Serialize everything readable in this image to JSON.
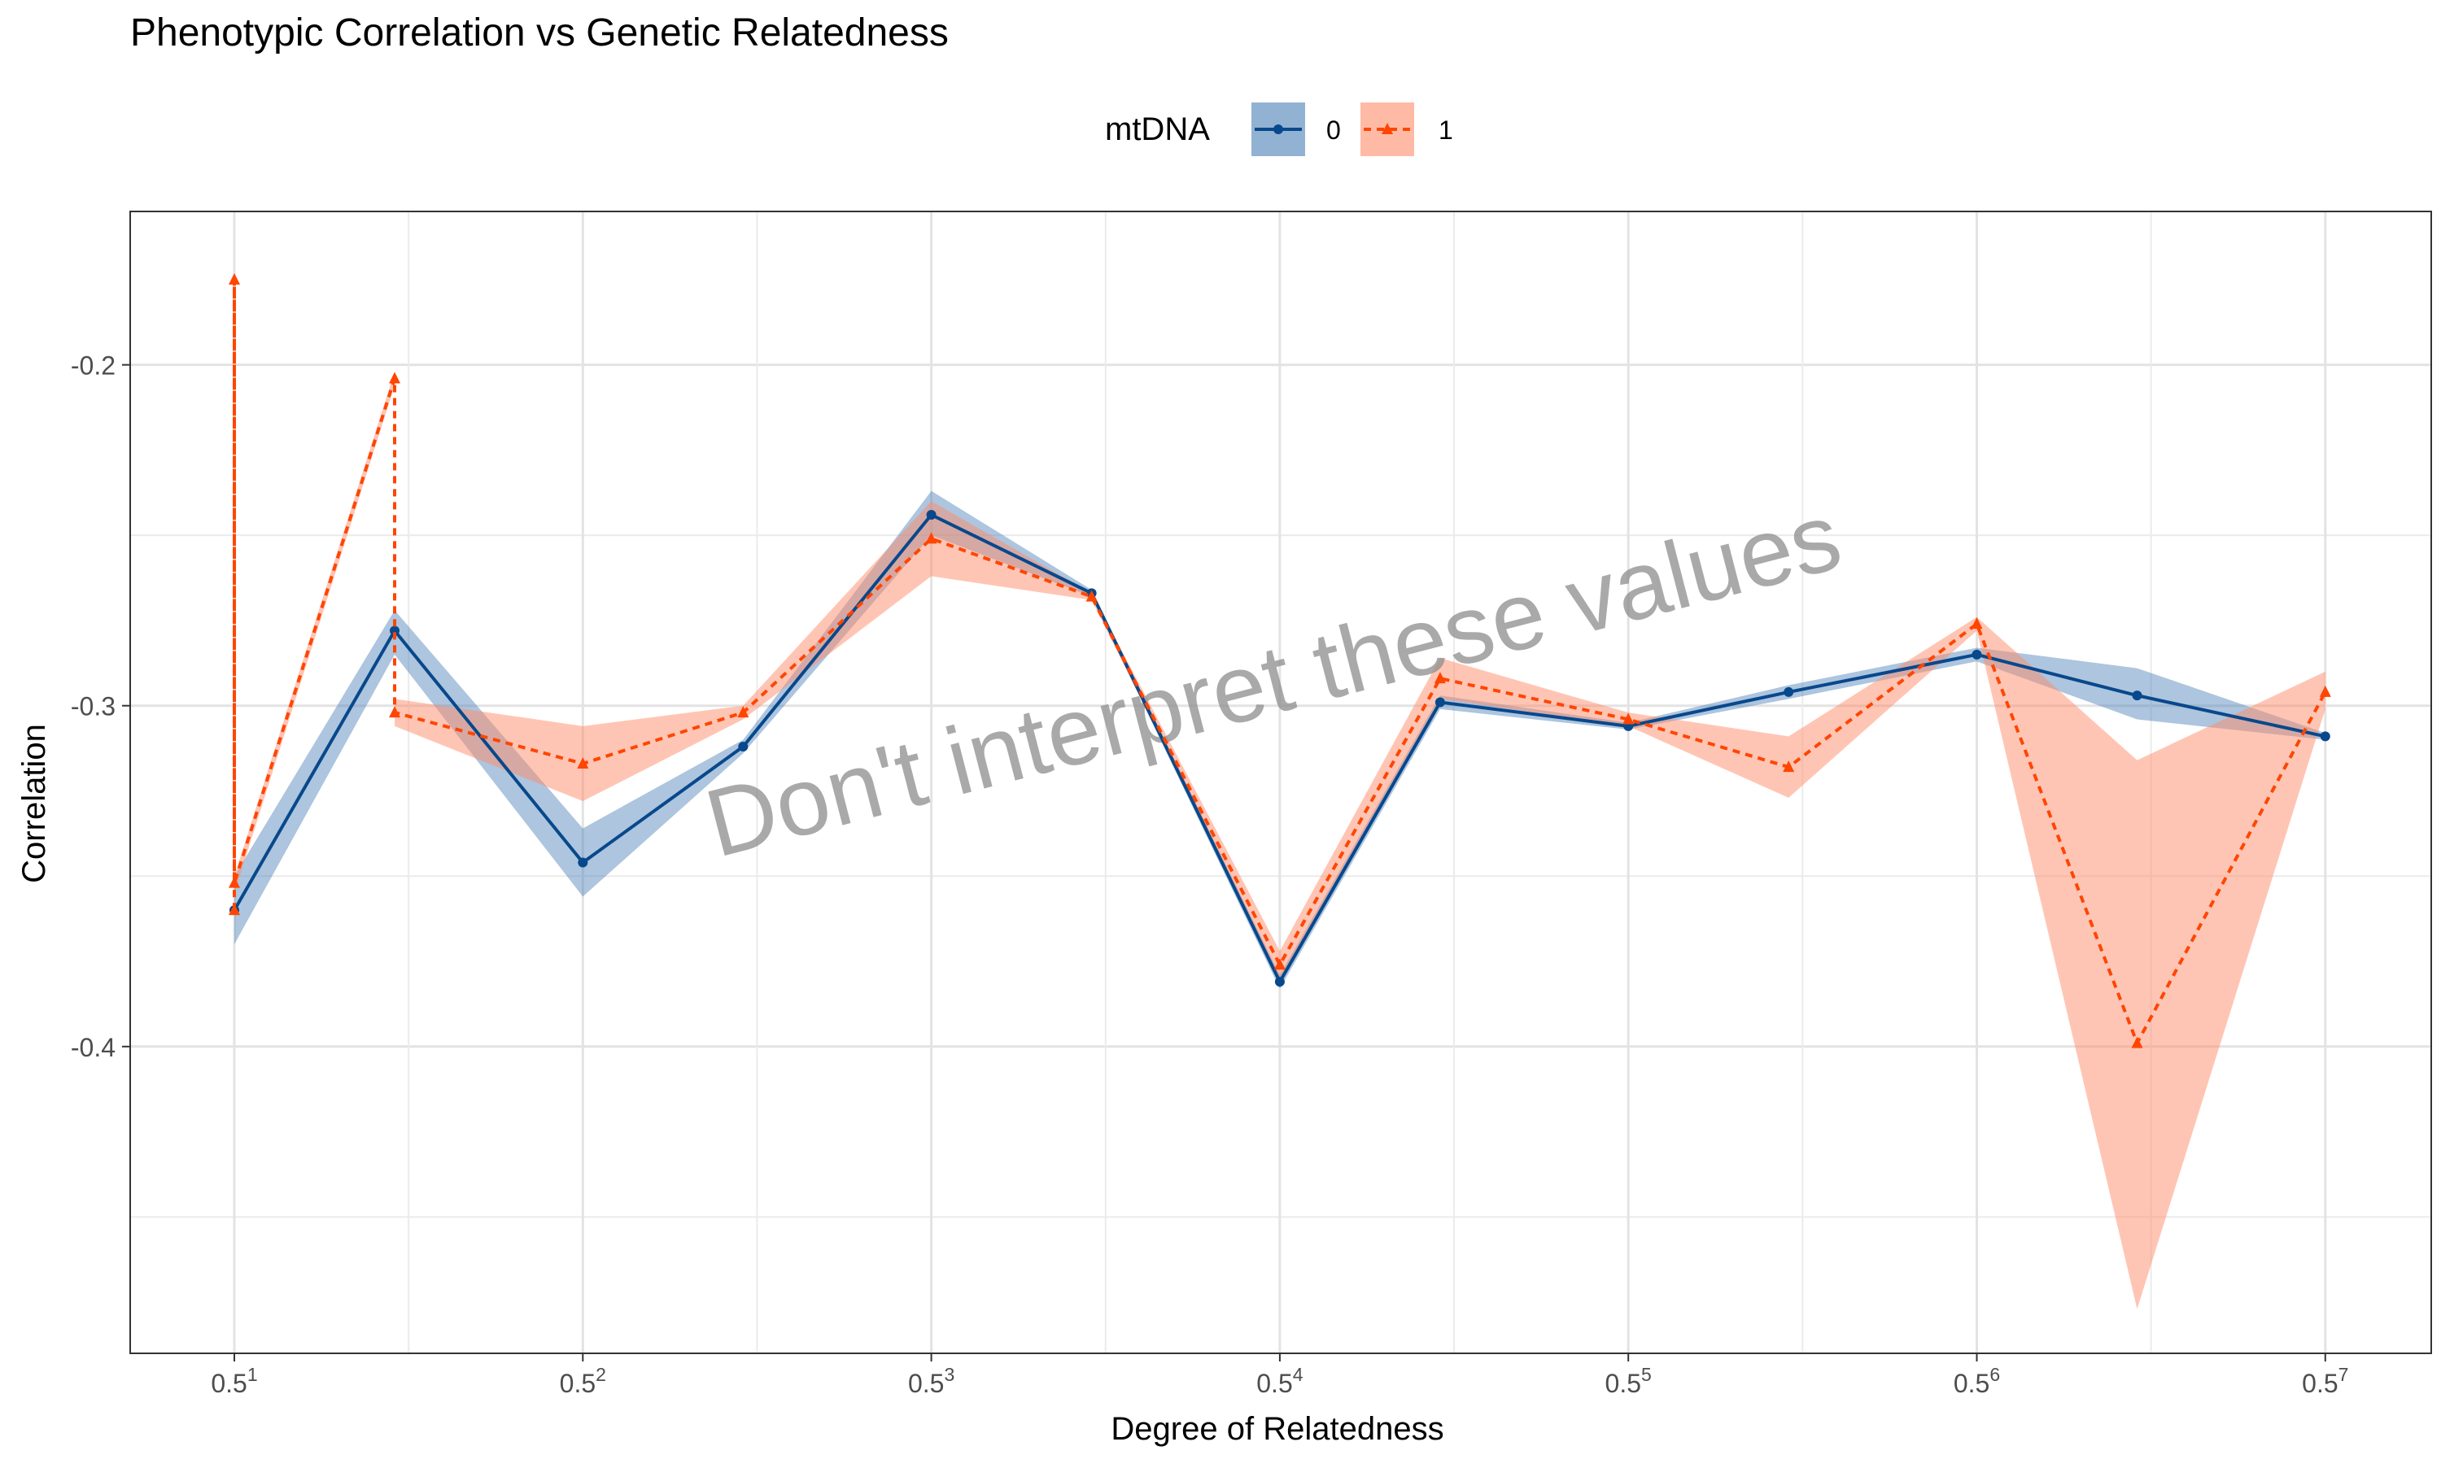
{
  "chart_data": {
    "type": "line",
    "title": "Phenotypic Correlation vs Genetic Relatedness",
    "xlabel": "Degree of Relatedness",
    "ylabel": "Correlation",
    "x_scale": "log base 0.5",
    "x_tick_exponents": [
      1,
      2,
      3,
      4,
      5,
      6,
      7
    ],
    "x_tick_base": "0.5",
    "y_ticks": [
      -0.2,
      -0.3,
      -0.4
    ],
    "y_tick_labels": [
      "-0.2",
      "-0.3",
      "-0.4"
    ],
    "ylim": [
      -0.49,
      -0.155
    ],
    "grid": true,
    "legend": {
      "title": "mtDNA",
      "position": "top"
    },
    "watermark": "Don't interpret these values",
    "series": [
      {
        "name": "0",
        "color": "#08488C",
        "fill": "#4A7FB5",
        "linestyle": "solid",
        "marker": "circle",
        "points": [
          {
            "exp": 1.0,
            "y": -0.36,
            "lo": -0.37,
            "hi": -0.35
          },
          {
            "exp": 1.46,
            "y": -0.278,
            "lo": -0.285,
            "hi": -0.272
          },
          {
            "exp": 2.0,
            "y": -0.346,
            "lo": -0.356,
            "hi": -0.336
          },
          {
            "exp": 2.46,
            "y": -0.312,
            "lo": -0.314,
            "hi": -0.31
          },
          {
            "exp": 3.0,
            "y": -0.244,
            "lo": -0.25,
            "hi": -0.237
          },
          {
            "exp": 3.46,
            "y": -0.267,
            "lo": -0.268,
            "hi": -0.266
          },
          {
            "exp": 4.0,
            "y": -0.381,
            "lo": -0.383,
            "hi": -0.379
          },
          {
            "exp": 4.46,
            "y": -0.299,
            "lo": -0.301,
            "hi": -0.297
          },
          {
            "exp": 5.0,
            "y": -0.306,
            "lo": -0.307,
            "hi": -0.305
          },
          {
            "exp": 5.46,
            "y": -0.296,
            "lo": -0.298,
            "hi": -0.294
          },
          {
            "exp": 6.0,
            "y": -0.285,
            "lo": -0.287,
            "hi": -0.283
          },
          {
            "exp": 6.46,
            "y": -0.297,
            "lo": -0.304,
            "hi": -0.289
          },
          {
            "exp": 7.0,
            "y": -0.309,
            "lo": -0.31,
            "hi": -0.308
          }
        ]
      },
      {
        "name": "1",
        "color": "#FF4500",
        "fill": "#FF8C69",
        "linestyle": "dashed",
        "marker": "triangle",
        "points": [
          {
            "exp": 1.0,
            "y": -0.36,
            "lo": -0.362,
            "hi": -0.356
          },
          {
            "exp": 1.0,
            "y": -0.175,
            "lo": -0.175,
            "hi": -0.175
          },
          {
            "exp": 1.0,
            "y": -0.352,
            "lo": -0.355,
            "hi": -0.35
          },
          {
            "exp": 1.46,
            "y": -0.204,
            "lo": -0.206,
            "hi": -0.202
          },
          {
            "exp": 1.46,
            "y": -0.302,
            "lo": -0.306,
            "hi": -0.298
          },
          {
            "exp": 2.0,
            "y": -0.317,
            "lo": -0.328,
            "hi": -0.306
          },
          {
            "exp": 2.46,
            "y": -0.302,
            "lo": -0.304,
            "hi": -0.3
          },
          {
            "exp": 3.0,
            "y": -0.251,
            "lo": -0.262,
            "hi": -0.24
          },
          {
            "exp": 3.46,
            "y": -0.268,
            "lo": -0.269,
            "hi": -0.267
          },
          {
            "exp": 4.0,
            "y": -0.376,
            "lo": -0.38,
            "hi": -0.372
          },
          {
            "exp": 4.46,
            "y": -0.292,
            "lo": -0.298,
            "hi": -0.286
          },
          {
            "exp": 5.0,
            "y": -0.304,
            "lo": -0.306,
            "hi": -0.302
          },
          {
            "exp": 5.46,
            "y": -0.318,
            "lo": -0.327,
            "hi": -0.309
          },
          {
            "exp": 6.0,
            "y": -0.276,
            "lo": -0.278,
            "hi": -0.274
          },
          {
            "exp": 6.46,
            "y": -0.399,
            "lo": -0.477,
            "hi": -0.316
          },
          {
            "exp": 7.0,
            "y": -0.296,
            "lo": -0.301,
            "hi": -0.29
          }
        ]
      }
    ]
  }
}
